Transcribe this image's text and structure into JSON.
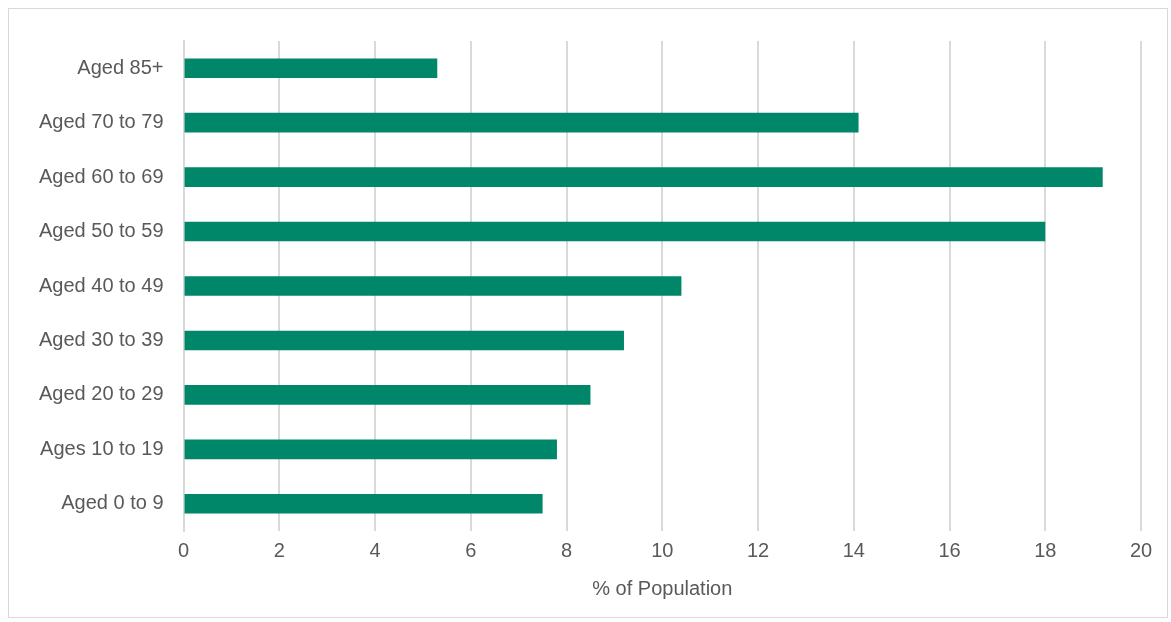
{
  "chart_data": {
    "type": "bar",
    "orientation": "horizontal",
    "xlabel": "% of Population",
    "categories": [
      "Aged 85+",
      "Aged 70 to 79",
      "Aged 60 to 69",
      "Aged 50 to 59",
      "Aged 40 to 49",
      "Aged 30 to 39",
      "Aged 20 to 29",
      "Ages 10 to 19",
      "Aged 0 to 9"
    ],
    "values": [
      5.3,
      14.1,
      19.2,
      18.0,
      10.4,
      9.2,
      8.5,
      7.8,
      7.5
    ],
    "color": "#00876a",
    "xlim": [
      0,
      20
    ],
    "xticks": [
      0,
      2,
      4,
      6,
      8,
      10,
      12,
      14,
      16,
      18,
      20
    ],
    "grid": "x",
    "legend": false
  }
}
